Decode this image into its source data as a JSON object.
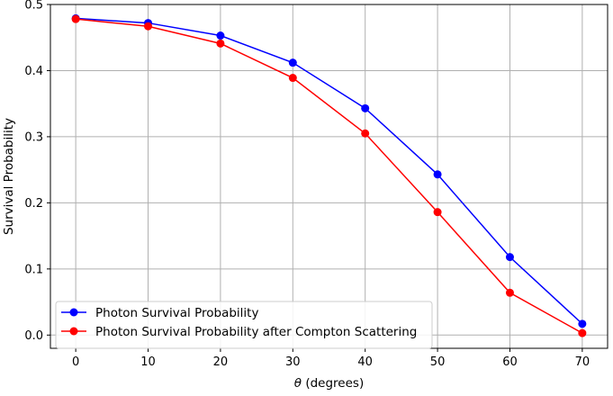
{
  "chart_data": {
    "type": "line",
    "title": "",
    "xlabel_symbol": "θ",
    "xlabel_rest": " (degrees)",
    "ylabel": "Survival Probability",
    "xlim": [
      -3.5,
      73.5
    ],
    "ylim": [
      -0.02,
      0.5
    ],
    "xticks": [
      0,
      10,
      20,
      30,
      40,
      50,
      60,
      70
    ],
    "yticks": [
      0.0,
      0.1,
      0.2,
      0.3,
      0.4,
      0.5
    ],
    "xtick_labels": [
      "0",
      "10",
      "20",
      "30",
      "40",
      "50",
      "60",
      "70"
    ],
    "ytick_labels": [
      "0.0",
      "0.1",
      "0.2",
      "0.3",
      "0.4",
      "0.5"
    ],
    "grid": true,
    "legend_position": "lower-left",
    "x": [
      0,
      10,
      20,
      30,
      40,
      50,
      60,
      70
    ],
    "series": [
      {
        "name": "Photon Survival Probability",
        "color": "#0000ff",
        "marker": "circle",
        "values": [
          0.479,
          0.472,
          0.453,
          0.412,
          0.343,
          0.243,
          0.118,
          0.017
        ]
      },
      {
        "name": "Photon Survival Probability after Compton Scattering",
        "color": "#ff0000",
        "marker": "circle",
        "values": [
          0.478,
          0.467,
          0.441,
          0.389,
          0.305,
          0.186,
          0.064,
          0.003
        ]
      }
    ]
  }
}
